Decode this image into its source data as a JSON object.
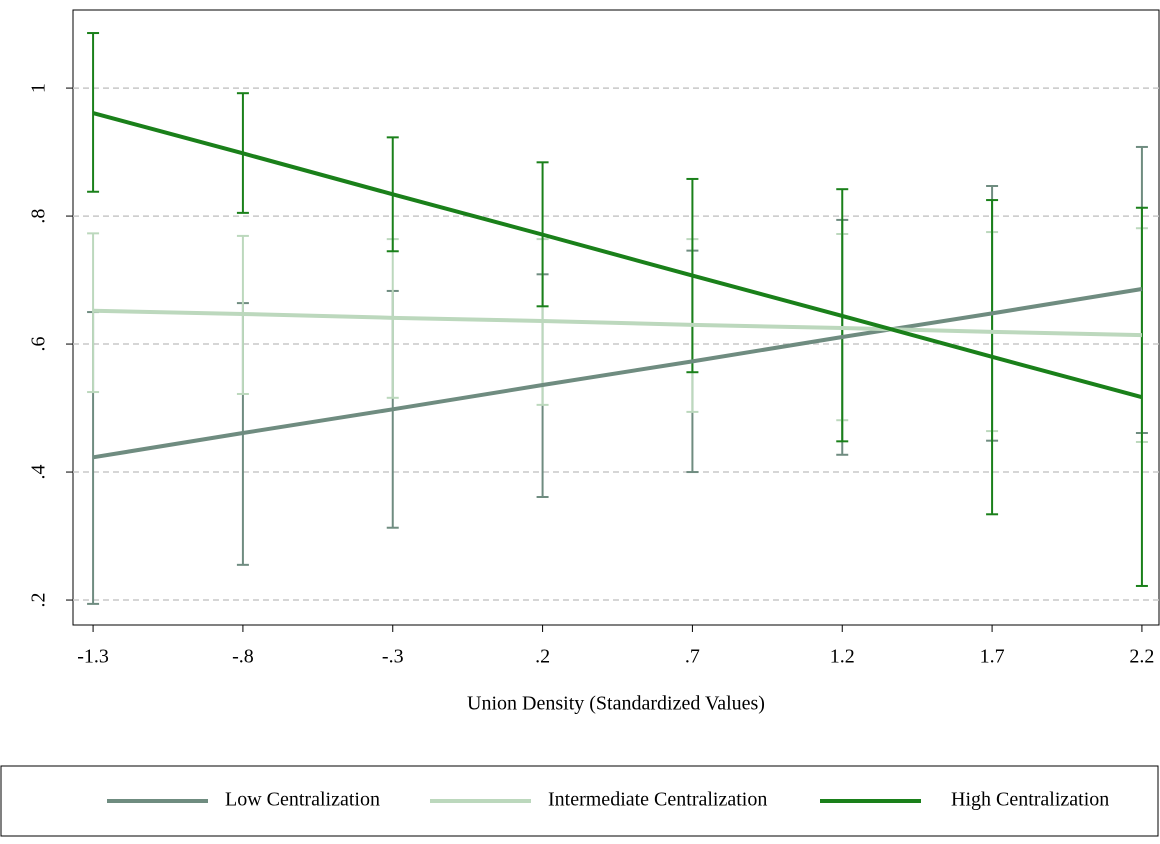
{
  "chart_data": {
    "type": "line",
    "x_label": "Union Density (Standardized Values)",
    "x": [
      -1.3,
      -0.8,
      -0.3,
      0.2,
      0.7,
      1.2,
      1.7,
      2.2
    ],
    "xlim": [
      -1.367,
      2.257
    ],
    "xticks": [
      {
        "value": -1.3,
        "label": "-1.3"
      },
      {
        "value": -0.8,
        "label": "-.8"
      },
      {
        "value": -0.3,
        "label": "-.3"
      },
      {
        "value": 0.2,
        "label": ".2"
      },
      {
        "value": 0.7,
        "label": ".7"
      },
      1.2,
      1.7,
      2.2
    ],
    "ylim": [
      0.161,
      1.122
    ],
    "yticks": [
      {
        "value": 0.2,
        "label": ".2"
      },
      {
        "value": 0.4,
        "label": ".4"
      },
      {
        "value": 0.6,
        "label": ".6"
      },
      {
        "value": 0.8,
        "label": ".8"
      },
      1
    ],
    "grid": true,
    "series": [
      {
        "name": "Low Centralization",
        "color": "#6f8c80",
        "values": [
          0.423,
          0.461,
          0.498,
          0.536,
          0.573,
          0.611,
          0.648,
          0.686
        ],
        "lower": [
          0.194,
          0.255,
          0.313,
          0.361,
          0.4,
          0.427,
          0.449,
          0.461
        ],
        "upper": [
          0.65,
          0.664,
          0.683,
          0.709,
          0.746,
          0.794,
          0.847,
          0.908
        ]
      },
      {
        "name": "Intermediate Centralization",
        "color": "#bcd8bd",
        "values": [
          0.652,
          0.647,
          0.641,
          0.636,
          0.63,
          0.625,
          0.619,
          0.614
        ],
        "lower": [
          0.525,
          0.522,
          0.516,
          0.505,
          0.494,
          0.481,
          0.464,
          0.447
        ],
        "upper": [
          0.773,
          0.769,
          0.764,
          0.764,
          0.764,
          0.772,
          0.775,
          0.781
        ]
      },
      {
        "name": "High Centralization",
        "color": "#1a801a",
        "values": [
          0.961,
          0.898,
          0.834,
          0.771,
          0.707,
          0.644,
          0.58,
          0.517
        ],
        "lower": [
          0.838,
          0.805,
          0.745,
          0.659,
          0.556,
          0.448,
          0.334,
          0.222
        ],
        "upper": [
          1.086,
          0.992,
          0.923,
          0.884,
          0.858,
          0.842,
          0.825,
          0.813
        ]
      }
    ]
  }
}
